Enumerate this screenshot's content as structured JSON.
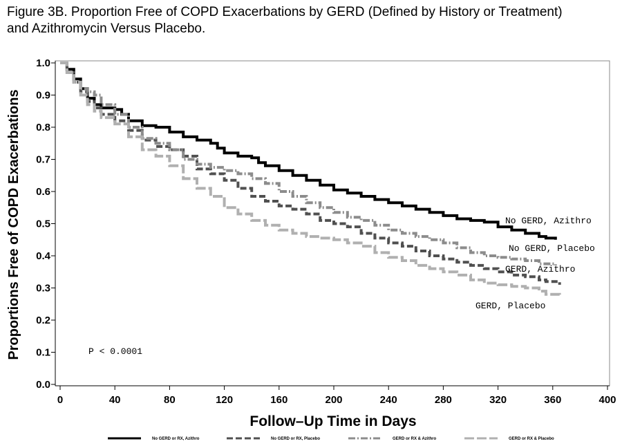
{
  "title_line1": "Figure 3B. Proportion Free of COPD Exacerbations by GERD (Defined by History or Treatment)",
  "title_line2": "and Azithromycin Versus Placebo.",
  "chart_data": {
    "type": "line",
    "step": true,
    "xlabel": "Follow–Up Time in Days",
    "ylabel": "Proportions Free of COPD Exacerbations",
    "xlim": [
      0,
      400
    ],
    "ylim": [
      0.0,
      1.0
    ],
    "xticks": [
      "0",
      "40",
      "80",
      "120",
      "160",
      "200",
      "240",
      "280",
      "320",
      "360",
      "400"
    ],
    "yticks": [
      "0.0",
      "0.1",
      "0.2",
      "0.3",
      "0.4",
      "0.5",
      "0.6",
      "0.7",
      "0.8",
      "0.9",
      "1.0"
    ],
    "grid": false,
    "annotation": "P < 0.0001",
    "series": [
      {
        "name": "No GERD or RX, Azithro",
        "end_label": "No GERD, Azithro",
        "color": "#000000",
        "style": "solid",
        "points": [
          [
            0,
            1.0
          ],
          [
            5,
            0.98
          ],
          [
            10,
            0.95
          ],
          [
            15,
            0.92
          ],
          [
            20,
            0.89
          ],
          [
            25,
            0.87
          ],
          [
            30,
            0.86
          ],
          [
            40,
            0.855
          ],
          [
            45,
            0.84
          ],
          [
            50,
            0.82
          ],
          [
            60,
            0.805
          ],
          [
            70,
            0.8
          ],
          [
            80,
            0.785
          ],
          [
            90,
            0.77
          ],
          [
            100,
            0.76
          ],
          [
            110,
            0.75
          ],
          [
            115,
            0.735
          ],
          [
            120,
            0.72
          ],
          [
            130,
            0.71
          ],
          [
            140,
            0.705
          ],
          [
            145,
            0.69
          ],
          [
            150,
            0.68
          ],
          [
            160,
            0.665
          ],
          [
            170,
            0.65
          ],
          [
            180,
            0.635
          ],
          [
            190,
            0.62
          ],
          [
            200,
            0.605
          ],
          [
            210,
            0.595
          ],
          [
            220,
            0.585
          ],
          [
            230,
            0.575
          ],
          [
            240,
            0.565
          ],
          [
            250,
            0.555
          ],
          [
            260,
            0.545
          ],
          [
            270,
            0.535
          ],
          [
            280,
            0.525
          ],
          [
            290,
            0.515
          ],
          [
            300,
            0.51
          ],
          [
            310,
            0.505
          ],
          [
            320,
            0.49
          ],
          [
            330,
            0.48
          ],
          [
            340,
            0.47
          ],
          [
            350,
            0.46
          ],
          [
            355,
            0.455
          ],
          [
            362,
            0.45
          ]
        ]
      },
      {
        "name": "No GERD or RX, Placebo",
        "end_label": "No GERD, Placebo",
        "color": "#505050",
        "style": "dashed",
        "points": [
          [
            0,
            1.0
          ],
          [
            5,
            0.97
          ],
          [
            10,
            0.94
          ],
          [
            15,
            0.91
          ],
          [
            20,
            0.88
          ],
          [
            25,
            0.86
          ],
          [
            30,
            0.84
          ],
          [
            40,
            0.82
          ],
          [
            50,
            0.79
          ],
          [
            60,
            0.76
          ],
          [
            70,
            0.74
          ],
          [
            80,
            0.73
          ],
          [
            90,
            0.71
          ],
          [
            100,
            0.67
          ],
          [
            110,
            0.655
          ],
          [
            120,
            0.635
          ],
          [
            130,
            0.61
          ],
          [
            140,
            0.585
          ],
          [
            150,
            0.57
          ],
          [
            160,
            0.555
          ],
          [
            170,
            0.545
          ],
          [
            180,
            0.53
          ],
          [
            190,
            0.51
          ],
          [
            200,
            0.5
          ],
          [
            210,
            0.49
          ],
          [
            220,
            0.47
          ],
          [
            230,
            0.455
          ],
          [
            240,
            0.44
          ],
          [
            250,
            0.43
          ],
          [
            260,
            0.415
          ],
          [
            270,
            0.4
          ],
          [
            280,
            0.39
          ],
          [
            290,
            0.38
          ],
          [
            300,
            0.37
          ],
          [
            310,
            0.36
          ],
          [
            320,
            0.35
          ],
          [
            330,
            0.34
          ],
          [
            340,
            0.335
          ],
          [
            350,
            0.325
          ],
          [
            355,
            0.32
          ],
          [
            365,
            0.31
          ]
        ]
      },
      {
        "name": "GERD or RX & Azithro",
        "end_label": "GERD, Azithro",
        "color": "#8c8c8c",
        "style": "dashdot",
        "points": [
          [
            0,
            1.0
          ],
          [
            5,
            0.97
          ],
          [
            10,
            0.94
          ],
          [
            15,
            0.92
          ],
          [
            20,
            0.91
          ],
          [
            25,
            0.9
          ],
          [
            30,
            0.87
          ],
          [
            40,
            0.84
          ],
          [
            50,
            0.8
          ],
          [
            60,
            0.765
          ],
          [
            70,
            0.75
          ],
          [
            80,
            0.73
          ],
          [
            90,
            0.7
          ],
          [
            100,
            0.685
          ],
          [
            110,
            0.675
          ],
          [
            120,
            0.665
          ],
          [
            130,
            0.655
          ],
          [
            140,
            0.64
          ],
          [
            150,
            0.625
          ],
          [
            160,
            0.6
          ],
          [
            170,
            0.585
          ],
          [
            180,
            0.565
          ],
          [
            190,
            0.55
          ],
          [
            200,
            0.535
          ],
          [
            210,
            0.52
          ],
          [
            220,
            0.51
          ],
          [
            230,
            0.495
          ],
          [
            240,
            0.48
          ],
          [
            250,
            0.47
          ],
          [
            260,
            0.46
          ],
          [
            270,
            0.45
          ],
          [
            280,
            0.44
          ],
          [
            290,
            0.425
          ],
          [
            300,
            0.41
          ],
          [
            310,
            0.4
          ],
          [
            320,
            0.395
          ],
          [
            330,
            0.39
          ],
          [
            340,
            0.385
          ],
          [
            350,
            0.375
          ],
          [
            362,
            0.37
          ]
        ]
      },
      {
        "name": "GERD or RX & Placebo",
        "end_label": "GERD, Placebo",
        "color": "#b0b0b0",
        "style": "dashed-long",
        "points": [
          [
            0,
            1.0
          ],
          [
            5,
            0.97
          ],
          [
            10,
            0.94
          ],
          [
            15,
            0.9
          ],
          [
            20,
            0.87
          ],
          [
            25,
            0.85
          ],
          [
            30,
            0.83
          ],
          [
            40,
            0.81
          ],
          [
            50,
            0.77
          ],
          [
            60,
            0.73
          ],
          [
            70,
            0.71
          ],
          [
            80,
            0.68
          ],
          [
            90,
            0.64
          ],
          [
            100,
            0.61
          ],
          [
            110,
            0.585
          ],
          [
            120,
            0.55
          ],
          [
            130,
            0.53
          ],
          [
            140,
            0.51
          ],
          [
            150,
            0.495
          ],
          [
            160,
            0.48
          ],
          [
            170,
            0.47
          ],
          [
            180,
            0.46
          ],
          [
            190,
            0.455
          ],
          [
            200,
            0.45
          ],
          [
            210,
            0.44
          ],
          [
            220,
            0.43
          ],
          [
            230,
            0.41
          ],
          [
            240,
            0.395
          ],
          [
            250,
            0.385
          ],
          [
            260,
            0.37
          ],
          [
            270,
            0.36
          ],
          [
            280,
            0.35
          ],
          [
            290,
            0.34
          ],
          [
            300,
            0.325
          ],
          [
            310,
            0.315
          ],
          [
            320,
            0.31
          ],
          [
            330,
            0.305
          ],
          [
            340,
            0.3
          ],
          [
            350,
            0.29
          ],
          [
            355,
            0.28
          ],
          [
            365,
            0.275
          ]
        ]
      }
    ]
  }
}
